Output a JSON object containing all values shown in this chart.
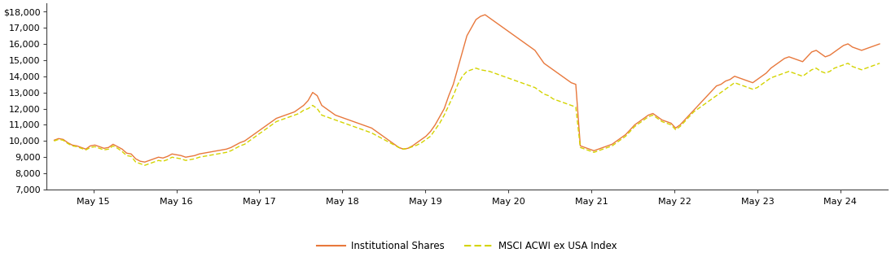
{
  "x_labels": [
    "May 15",
    "May 16",
    "May 17",
    "May 18",
    "May 19",
    "May 20",
    "May 21",
    "May 22",
    "May 23",
    "May 24"
  ],
  "ylim": [
    7000,
    18500
  ],
  "yticks": [
    7000,
    8000,
    9000,
    10000,
    11000,
    12000,
    13000,
    14000,
    15000,
    16000,
    17000,
    18000
  ],
  "ytick_labels": [
    "7,000",
    "8,000",
    "9,000",
    "10,000",
    "11,000",
    "12,000",
    "13,000",
    "14,000",
    "15,000",
    "16,000",
    "17,000",
    "$18,000"
  ],
  "institutional_color": "#E8783C",
  "msci_color": "#D4D400",
  "institutional_label": "Institutional Shares",
  "msci_label": "MSCI ACWI ex USA Index",
  "inst": [
    10050,
    10150,
    10100,
    9900,
    9750,
    9700,
    9600,
    9500,
    9700,
    9750,
    9650,
    9550,
    9600,
    9800,
    9650,
    9500,
    9250,
    9200,
    8900,
    8750,
    8700,
    8800,
    8900,
    9000,
    8950,
    9050,
    9200,
    9150,
    9100,
    9000,
    9050,
    9100,
    9200,
    9250,
    9300,
    9350,
    9400,
    9450,
    9500,
    9600,
    9750,
    9900,
    10000,
    10200,
    10400,
    10600,
    10800,
    11000,
    11200,
    11400,
    11500,
    11600,
    11700,
    11800,
    12000,
    12200,
    12500,
    13000,
    12800,
    12200,
    12000,
    11800,
    11600,
    11500,
    11400,
    11300,
    11200,
    11100,
    11000,
    10900,
    10800,
    10600,
    10400,
    10200,
    10000,
    9800,
    9600,
    9500,
    9550,
    9700,
    9900,
    10100,
    10300,
    10600,
    11000,
    11500,
    12000,
    12800,
    13500,
    14500,
    15500,
    16500,
    17000,
    17500,
    17700,
    17800,
    17600,
    17400,
    17200,
    17000,
    16800,
    16600,
    16400,
    16200,
    16000,
    15800,
    15600,
    15200,
    14800,
    14600,
    14400,
    14200,
    14000,
    13800,
    13600,
    13500,
    9700,
    9600,
    9500,
    9400,
    9500,
    9600,
    9700,
    9800,
    10000,
    10200,
    10400,
    10700,
    11000,
    11200,
    11400,
    11600,
    11700,
    11500,
    11300,
    11200,
    11100,
    10800,
    11000,
    11300,
    11600,
    11900,
    12200,
    12500,
    12800,
    13100,
    13400,
    13500,
    13700,
    13800,
    14000,
    13900,
    13800,
    13700,
    13600,
    13800,
    14000,
    14200,
    14500,
    14700,
    14900,
    15100,
    15200,
    15100,
    15000,
    14900,
    15200,
    15500,
    15600,
    15400,
    15200,
    15300,
    15500,
    15700,
    15900,
    16000,
    15800,
    15700,
    15600,
    15700,
    15800,
    15900,
    16000
  ],
  "msci": [
    10000,
    10100,
    10050,
    9850,
    9700,
    9650,
    9550,
    9450,
    9600,
    9650,
    9550,
    9450,
    9500,
    9700,
    9550,
    9350,
    9100,
    9050,
    8700,
    8600,
    8500,
    8600,
    8700,
    8800,
    8750,
    8850,
    9000,
    8950,
    8900,
    8800,
    8850,
    8900,
    9000,
    9050,
    9100,
    9150,
    9200,
    9250,
    9300,
    9400,
    9550,
    9700,
    9800,
    10000,
    10200,
    10400,
    10600,
    10800,
    11000,
    11200,
    11300,
    11400,
    11500,
    11600,
    11700,
    11900,
    12000,
    12200,
    12000,
    11600,
    11500,
    11400,
    11300,
    11200,
    11100,
    11000,
    10900,
    10800,
    10700,
    10600,
    10500,
    10350,
    10200,
    10050,
    9900,
    9750,
    9600,
    9500,
    9550,
    9650,
    9750,
    9900,
    10100,
    10300,
    10700,
    11100,
    11600,
    12200,
    12800,
    13500,
    14000,
    14300,
    14400,
    14500,
    14400,
    14350,
    14300,
    14200,
    14100,
    14000,
    13900,
    13800,
    13700,
    13600,
    13500,
    13400,
    13300,
    13100,
    12900,
    12800,
    12600,
    12500,
    12400,
    12300,
    12200,
    12100,
    9600,
    9500,
    9400,
    9300,
    9400,
    9500,
    9600,
    9700,
    9900,
    10100,
    10300,
    10600,
    10900,
    11100,
    11300,
    11500,
    11600,
    11400,
    11200,
    11100,
    11000,
    10700,
    10900,
    11200,
    11500,
    11800,
    12000,
    12200,
    12400,
    12600,
    12800,
    13000,
    13200,
    13400,
    13600,
    13500,
    13400,
    13300,
    13200,
    13300,
    13500,
    13700,
    13900,
    14000,
    14100,
    14200,
    14300,
    14200,
    14100,
    14000,
    14200,
    14400,
    14500,
    14300,
    14200,
    14300,
    14500,
    14600,
    14700,
    14800,
    14600,
    14500,
    14400,
    14500,
    14600,
    14700,
    14800
  ],
  "background_color": "#ffffff",
  "figsize": [
    10.94,
    3.27
  ],
  "dpi": 100
}
